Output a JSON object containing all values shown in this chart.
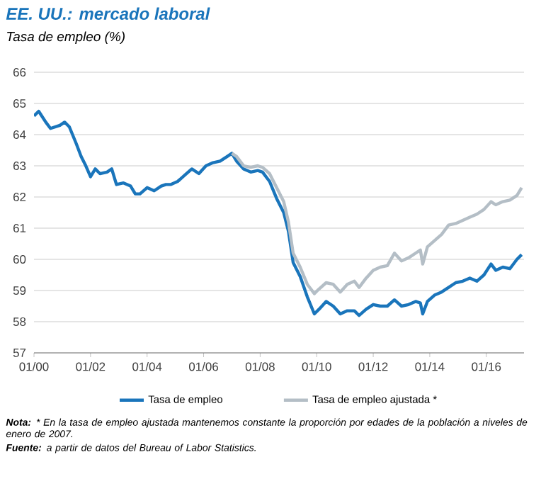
{
  "chart_data": {
    "type": "line",
    "title": "EE. UU.: mercado laboral",
    "subtitle": "Tasa de empleo (%)",
    "annotations": [
      "**Nota:** * En la tasa de empleo ajustada mantenemos constante la proporción por edades de la población a niveles de enero de 2007.",
      "**Fuente:** a partir de datos del Bureau of Labor Statistics."
    ],
    "xlim": [
      "2000-01",
      "2017-05"
    ],
    "xticks": [
      {
        "value": "2000-01",
        "label": "01/00"
      },
      {
        "value": "2002-01",
        "label": "01/02"
      },
      {
        "value": "2004-01",
        "label": "01/04"
      },
      {
        "value": "2006-01",
        "label": "01/06"
      },
      {
        "value": "2008-01",
        "label": "01/08"
      },
      {
        "value": "2010-01",
        "label": "01/10"
      },
      {
        "value": "2012-01",
        "label": "01/12"
      },
      {
        "value": "2014-01",
        "label": "01/14"
      },
      {
        "value": "2016-01",
        "label": "01/16"
      }
    ],
    "ylim": [
      57,
      66
    ],
    "yticks": [
      57,
      58,
      59,
      60,
      61,
      62,
      63,
      64,
      65,
      66
    ],
    "grid": "y",
    "legend": "bottom",
    "marker": "none",
    "line_style": "solid",
    "series": [
      {
        "name": "Tasa de empleo",
        "color": "#1a75bb",
        "x": [
          "2000-01",
          "2000-03",
          "2000-06",
          "2000-08",
          "2000-12",
          "2001-02",
          "2001-04",
          "2001-07",
          "2001-09",
          "2001-11",
          "2002-01",
          "2002-03",
          "2002-05",
          "2002-08",
          "2002-10",
          "2002-12",
          "2003-03",
          "2003-06",
          "2003-08",
          "2003-10",
          "2004-01",
          "2004-04",
          "2004-07",
          "2004-09",
          "2004-11",
          "2005-02",
          "2005-05",
          "2005-08",
          "2005-11",
          "2006-02",
          "2006-05",
          "2006-08",
          "2006-11",
          "2007-01",
          "2007-03",
          "2007-06",
          "2007-09",
          "2007-12",
          "2008-02",
          "2008-05",
          "2008-08",
          "2008-11",
          "2009-01",
          "2009-03",
          "2009-06",
          "2009-09",
          "2009-12",
          "2010-02",
          "2010-05",
          "2010-08",
          "2010-11",
          "2011-02",
          "2011-05",
          "2011-07",
          "2011-10",
          "2012-01",
          "2012-04",
          "2012-07",
          "2012-10",
          "2013-01",
          "2013-04",
          "2013-07",
          "2013-09",
          "2013-10",
          "2013-12",
          "2014-03",
          "2014-06",
          "2014-09",
          "2014-12",
          "2015-03",
          "2015-06",
          "2015-09",
          "2015-12",
          "2016-03",
          "2016-05",
          "2016-08",
          "2016-11",
          "2017-02",
          "2017-04"
        ],
        "values": [
          64.6,
          64.75,
          64.4,
          64.2,
          64.3,
          64.4,
          64.25,
          63.7,
          63.3,
          63.0,
          62.65,
          62.9,
          62.75,
          62.8,
          62.9,
          62.4,
          62.45,
          62.35,
          62.1,
          62.1,
          62.3,
          62.2,
          62.35,
          62.4,
          62.4,
          62.5,
          62.7,
          62.9,
          62.75,
          63.0,
          63.1,
          63.15,
          63.3,
          63.4,
          63.15,
          62.9,
          62.8,
          62.85,
          62.8,
          62.5,
          61.95,
          61.5,
          60.9,
          59.9,
          59.45,
          58.8,
          58.25,
          58.4,
          58.65,
          58.5,
          58.25,
          58.35,
          58.35,
          58.2,
          58.4,
          58.55,
          58.5,
          58.5,
          58.7,
          58.5,
          58.55,
          58.65,
          58.6,
          58.25,
          58.65,
          58.85,
          58.95,
          59.1,
          59.25,
          59.3,
          59.4,
          59.3,
          59.5,
          59.85,
          59.65,
          59.75,
          59.7,
          60.0,
          60.15
        ]
      },
      {
        "name": "Tasa de empleo ajustada *",
        "color": "#b4bec6",
        "x": [
          "2007-01",
          "2007-03",
          "2007-06",
          "2007-09",
          "2007-12",
          "2008-02",
          "2008-05",
          "2008-08",
          "2008-11",
          "2009-01",
          "2009-03",
          "2009-06",
          "2009-09",
          "2009-12",
          "2010-02",
          "2010-05",
          "2010-08",
          "2010-11",
          "2011-02",
          "2011-05",
          "2011-07",
          "2011-10",
          "2012-01",
          "2012-04",
          "2012-07",
          "2012-10",
          "2013-01",
          "2013-04",
          "2013-07",
          "2013-09",
          "2013-10",
          "2013-12",
          "2014-03",
          "2014-06",
          "2014-09",
          "2014-12",
          "2015-03",
          "2015-06",
          "2015-09",
          "2015-12",
          "2016-03",
          "2016-05",
          "2016-08",
          "2016-11",
          "2017-02",
          "2017-04"
        ],
        "values": [
          63.4,
          63.3,
          63.0,
          62.95,
          63.0,
          62.95,
          62.75,
          62.3,
          61.85,
          61.2,
          60.2,
          59.75,
          59.2,
          58.9,
          59.05,
          59.25,
          59.2,
          58.95,
          59.2,
          59.3,
          59.1,
          59.4,
          59.65,
          59.75,
          59.8,
          60.2,
          59.95,
          60.05,
          60.2,
          60.3,
          59.85,
          60.4,
          60.6,
          60.8,
          61.1,
          61.15,
          61.25,
          61.35,
          61.45,
          61.6,
          61.85,
          61.75,
          61.85,
          61.9,
          62.05,
          62.3
        ]
      }
    ]
  }
}
